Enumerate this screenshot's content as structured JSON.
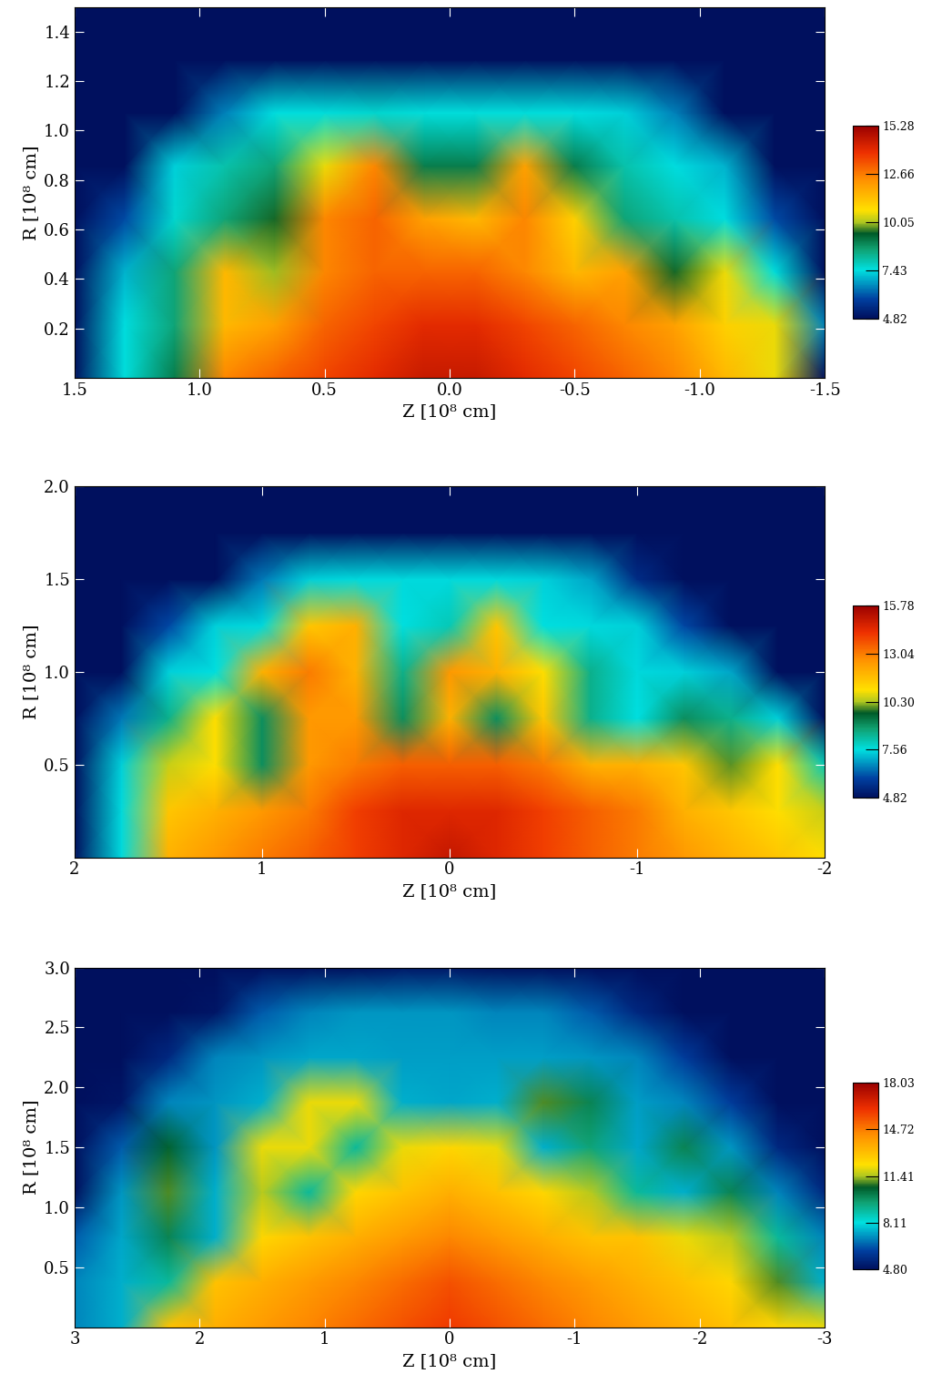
{
  "chart_data": [
    {
      "type": "heatmap",
      "xlabel": "Z [10⁸ cm]",
      "ylabel": "R [10⁸ cm]",
      "xlim": [
        1.5,
        -1.5
      ],
      "xticks": [
        1.5,
        {
          "value": 1.0,
          "label": "1.0"
        },
        0.5,
        0.0,
        -0.5,
        {
          "value": -1.0,
          "label": "-1.0"
        },
        -1.5
      ],
      "ylim": [
        0,
        1.5
      ],
      "yticks": [
        0.2,
        0.4,
        0.6,
        0.8,
        {
          "value": 1.0,
          "label": "1.0"
        },
        1.2,
        1.4
      ],
      "cells": [
        [
          4.82,
          7.5,
          9.0,
          12.5,
          13.0,
          13.5,
          14.0,
          14.5,
          14.5,
          14.0,
          13.5,
          13.0,
          12.5,
          11.5,
          10.5,
          4.82
        ],
        [
          4.82,
          7.4,
          8.5,
          11.5,
          12.0,
          13.0,
          13.5,
          14.0,
          14.0,
          13.5,
          13.0,
          12.5,
          12.0,
          11.0,
          10.5,
          6.5
        ],
        [
          4.82,
          7.0,
          8.5,
          11.5,
          10.0,
          12.5,
          13.0,
          13.0,
          13.0,
          12.5,
          11.5,
          12.0,
          9.5,
          10.5,
          7.5,
          4.82
        ],
        [
          4.82,
          6.0,
          7.6,
          8.5,
          9.5,
          12.5,
          13.0,
          12.0,
          11.5,
          12.5,
          11.0,
          8.5,
          8.0,
          7.4,
          6.0,
          4.82
        ],
        [
          4.82,
          4.82,
          7.3,
          8.0,
          8.5,
          10.5,
          12.5,
          9.0,
          9.0,
          12.0,
          9.0,
          8.0,
          7.4,
          7.0,
          4.82,
          4.82
        ],
        [
          4.82,
          4.82,
          4.82,
          6.5,
          7.4,
          7.5,
          7.6,
          7.5,
          7.5,
          7.5,
          7.4,
          7.3,
          6.5,
          4.82,
          4.82,
          4.82
        ],
        [
          4.82,
          4.82,
          4.82,
          4.82,
          4.82,
          4.82,
          4.82,
          4.82,
          4.82,
          4.82,
          4.82,
          4.82,
          4.82,
          4.82,
          4.82,
          4.82
        ],
        [
          4.82,
          4.82,
          4.82,
          4.82,
          4.82,
          4.82,
          4.82,
          4.82,
          4.82,
          4.82,
          4.82,
          4.82,
          4.82,
          4.82,
          4.82,
          4.82
        ]
      ],
      "colorbar_range": [
        4.82,
        15.28
      ],
      "colorbar_ticks": [
        4.82,
        7.43,
        {
          "value": 10.05,
          "label": "10.05"
        },
        12.66,
        15.28
      ]
    },
    {
      "type": "heatmap",
      "xlabel": "Z [10⁸ cm]",
      "ylabel": "R [10⁸ cm]",
      "xlim": [
        2,
        -2
      ],
      "xticks": [
        2,
        1,
        0,
        -1,
        -2
      ],
      "ylim": [
        0,
        2
      ],
      "yticks": [
        0.5,
        {
          "value": 1.0,
          "label": "1.0"
        },
        1.5,
        {
          "value": 2.0,
          "label": "2.0"
        }
      ],
      "cells": [
        [
          4.82,
          7.5,
          12.0,
          12.5,
          13.0,
          13.5,
          14.0,
          14.5,
          15.0,
          14.5,
          14.0,
          13.5,
          13.0,
          12.5,
          12.0,
          11.5,
          11.0
        ],
        [
          4.82,
          7.5,
          11.5,
          12.0,
          12.5,
          13.0,
          14.0,
          14.5,
          14.5,
          14.5,
          14.0,
          13.5,
          13.0,
          12.0,
          11.5,
          11.0,
          10.5
        ],
        [
          4.82,
          7.4,
          10.5,
          11.0,
          9.0,
          12.5,
          13.0,
          13.5,
          13.5,
          13.5,
          13.0,
          12.0,
          12.0,
          11.5,
          10.0,
          11.0,
          8.0
        ],
        [
          4.82,
          6.5,
          8.5,
          11.0,
          9.0,
          12.5,
          12.5,
          9.0,
          12.0,
          9.0,
          11.5,
          8.5,
          7.6,
          9.0,
          8.5,
          7.4,
          4.82
        ],
        [
          4.82,
          4.82,
          7.4,
          7.6,
          12.0,
          13.0,
          12.0,
          8.5,
          12.5,
          12.0,
          11.0,
          8.5,
          7.5,
          7.4,
          7.0,
          4.82,
          4.82
        ],
        [
          4.82,
          4.82,
          6.0,
          7.4,
          7.5,
          11.5,
          12.0,
          7.6,
          8.0,
          11.5,
          7.6,
          7.5,
          7.4,
          6.0,
          4.82,
          4.82,
          4.82
        ],
        [
          4.82,
          4.82,
          4.82,
          4.82,
          6.5,
          7.4,
          7.5,
          7.5,
          7.5,
          7.5,
          7.4,
          7.0,
          5.5,
          4.82,
          4.82,
          4.82,
          4.82
        ],
        [
          4.82,
          4.82,
          4.82,
          4.82,
          4.82,
          4.82,
          4.82,
          4.82,
          4.82,
          4.82,
          4.82,
          4.82,
          4.82,
          4.82,
          4.82,
          4.82,
          4.82
        ],
        [
          4.82,
          4.82,
          4.82,
          4.82,
          4.82,
          4.82,
          4.82,
          4.82,
          4.82,
          4.82,
          4.82,
          4.82,
          4.82,
          4.82,
          4.82,
          4.82,
          4.82
        ]
      ],
      "colorbar_range": [
        4.82,
        15.78
      ],
      "colorbar_ticks": [
        4.82,
        7.56,
        {
          "value": 10.3,
          "label": "10.30"
        },
        13.04,
        15.78
      ]
    },
    {
      "type": "heatmap",
      "xlabel": "Z [10⁸ cm]",
      "ylabel": "R [10⁸ cm]",
      "xlim": [
        3,
        -3
      ],
      "xticks": [
        3,
        2,
        1,
        0,
        -1,
        -2,
        -3
      ],
      "ylim": [
        0,
        3
      ],
      "yticks": [
        0.5,
        {
          "value": 1.0,
          "label": "1.0"
        },
        1.5,
        {
          "value": 2.0,
          "label": "2.0"
        },
        2.5,
        {
          "value": 3.0,
          "label": "3.0"
        }
      ],
      "cells": [
        [
          7.0,
          7.5,
          13.0,
          13.5,
          14.0,
          14.5,
          15.0,
          15.5,
          16.0,
          15.5,
          15.0,
          14.5,
          14.0,
          13.5,
          13.0,
          12.5,
          12.0
        ],
        [
          7.0,
          7.5,
          9.0,
          13.0,
          13.5,
          14.0,
          14.5,
          15.0,
          15.5,
          15.0,
          14.5,
          14.0,
          13.5,
          13.0,
          12.5,
          11.0,
          7.5
        ],
        [
          6.5,
          7.4,
          10.0,
          7.5,
          12.5,
          13.0,
          13.5,
          14.0,
          14.5,
          14.0,
          13.5,
          13.0,
          13.0,
          12.0,
          11.5,
          9.0,
          7.0
        ],
        [
          4.8,
          7.2,
          11.0,
          7.5,
          11.5,
          9.0,
          12.5,
          13.0,
          13.5,
          13.0,
          12.5,
          11.5,
          9.0,
          7.5,
          10.0,
          7.0,
          5.5
        ],
        [
          4.8,
          6.5,
          10.5,
          7.2,
          12.0,
          12.0,
          9.0,
          12.0,
          12.5,
          12.0,
          7.5,
          9.5,
          7.4,
          10.0,
          7.2,
          5.5,
          4.8
        ],
        [
          4.8,
          5.0,
          7.0,
          7.2,
          7.5,
          12.0,
          12.0,
          7.5,
          7.4,
          7.5,
          11.0,
          10.0,
          7.3,
          7.0,
          6.0,
          4.8,
          4.8
        ],
        [
          4.8,
          4.8,
          5.5,
          7.0,
          7.2,
          7.4,
          7.4,
          7.3,
          7.3,
          7.3,
          7.3,
          7.2,
          7.0,
          6.0,
          4.8,
          4.8,
          4.8
        ],
        [
          4.8,
          4.8,
          4.8,
          5.0,
          6.5,
          7.0,
          7.2,
          7.2,
          7.2,
          7.0,
          7.0,
          6.5,
          5.5,
          4.8,
          4.8,
          4.8,
          4.8
        ],
        [
          4.8,
          4.8,
          4.8,
          4.8,
          4.8,
          4.8,
          4.8,
          5.0,
          5.0,
          4.8,
          4.8,
          4.8,
          4.8,
          4.8,
          4.8,
          4.8,
          4.8
        ]
      ],
      "colorbar_range": [
        4.8,
        18.03
      ],
      "colorbar_ticks": [
        {
          "value": 4.8,
          "label": "4.80"
        },
        8.11,
        11.41,
        14.72,
        18.03
      ]
    }
  ]
}
